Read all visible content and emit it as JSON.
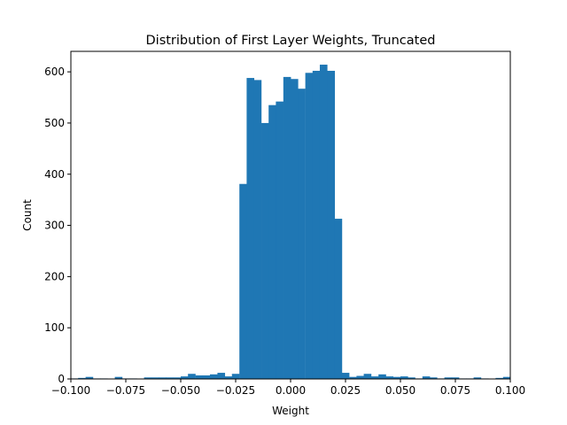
{
  "chart_data": {
    "type": "bar",
    "title": "Distribution of First Layer Weights, Truncated",
    "xlabel": "Weight",
    "ylabel": "Count",
    "xlim": [
      -0.1,
      0.1
    ],
    "ylim": [
      0,
      640
    ],
    "bar_color": "#1f77b4",
    "grid": false,
    "legend": "none",
    "bin_width": 0.00333,
    "x_ticks": [
      -0.1,
      -0.075,
      -0.05,
      -0.025,
      0.0,
      0.025,
      0.05,
      0.075,
      0.1
    ],
    "x_tick_labels": [
      "−0.100",
      "−0.075",
      "−0.050",
      "−0.025",
      "0.000",
      "0.025",
      "0.050",
      "0.075",
      "0.100"
    ],
    "y_ticks": [
      0,
      100,
      200,
      300,
      400,
      500,
      600
    ],
    "y_tick_labels": [
      "0",
      "100",
      "200",
      "300",
      "400",
      "500",
      "600"
    ],
    "bins": [
      {
        "x": -0.1,
        "value": 1
      },
      {
        "x": -0.0967,
        "value": 2
      },
      {
        "x": -0.0933,
        "value": 4
      },
      {
        "x": -0.09,
        "value": 1
      },
      {
        "x": -0.0867,
        "value": 1
      },
      {
        "x": -0.0833,
        "value": 0
      },
      {
        "x": -0.08,
        "value": 4
      },
      {
        "x": -0.0767,
        "value": 1
      },
      {
        "x": -0.0733,
        "value": 1
      },
      {
        "x": -0.07,
        "value": 0
      },
      {
        "x": -0.0667,
        "value": 3
      },
      {
        "x": -0.0633,
        "value": 3
      },
      {
        "x": -0.06,
        "value": 3
      },
      {
        "x": -0.0567,
        "value": 3
      },
      {
        "x": -0.0533,
        "value": 3
      },
      {
        "x": -0.05,
        "value": 5
      },
      {
        "x": -0.0467,
        "value": 10
      },
      {
        "x": -0.0433,
        "value": 7
      },
      {
        "x": -0.04,
        "value": 7
      },
      {
        "x": -0.0367,
        "value": 9
      },
      {
        "x": -0.0333,
        "value": 12
      },
      {
        "x": -0.03,
        "value": 5
      },
      {
        "x": -0.0267,
        "value": 10
      },
      {
        "x": -0.0233,
        "value": 381
      },
      {
        "x": -0.02,
        "value": 588
      },
      {
        "x": -0.0167,
        "value": 584
      },
      {
        "x": -0.0133,
        "value": 500
      },
      {
        "x": -0.01,
        "value": 535
      },
      {
        "x": -0.0067,
        "value": 542
      },
      {
        "x": -0.0033,
        "value": 590
      },
      {
        "x": 0.0,
        "value": 586
      },
      {
        "x": 0.0033,
        "value": 567
      },
      {
        "x": 0.0067,
        "value": 598
      },
      {
        "x": 0.01,
        "value": 602
      },
      {
        "x": 0.0133,
        "value": 614
      },
      {
        "x": 0.0167,
        "value": 602
      },
      {
        "x": 0.02,
        "value": 313
      },
      {
        "x": 0.0233,
        "value": 12
      },
      {
        "x": 0.0267,
        "value": 4
      },
      {
        "x": 0.03,
        "value": 6
      },
      {
        "x": 0.0333,
        "value": 10
      },
      {
        "x": 0.0367,
        "value": 5
      },
      {
        "x": 0.04,
        "value": 9
      },
      {
        "x": 0.0433,
        "value": 5
      },
      {
        "x": 0.0467,
        "value": 4
      },
      {
        "x": 0.05,
        "value": 5
      },
      {
        "x": 0.0533,
        "value": 3
      },
      {
        "x": 0.0567,
        "value": 1
      },
      {
        "x": 0.06,
        "value": 5
      },
      {
        "x": 0.0633,
        "value": 3
      },
      {
        "x": 0.0667,
        "value": 1
      },
      {
        "x": 0.07,
        "value": 3
      },
      {
        "x": 0.0733,
        "value": 3
      },
      {
        "x": 0.0767,
        "value": 1
      },
      {
        "x": 0.08,
        "value": 1
      },
      {
        "x": 0.0833,
        "value": 3
      },
      {
        "x": 0.0867,
        "value": 1
      },
      {
        "x": 0.09,
        "value": 0
      },
      {
        "x": 0.0933,
        "value": 2
      },
      {
        "x": 0.0967,
        "value": 4
      }
    ]
  }
}
